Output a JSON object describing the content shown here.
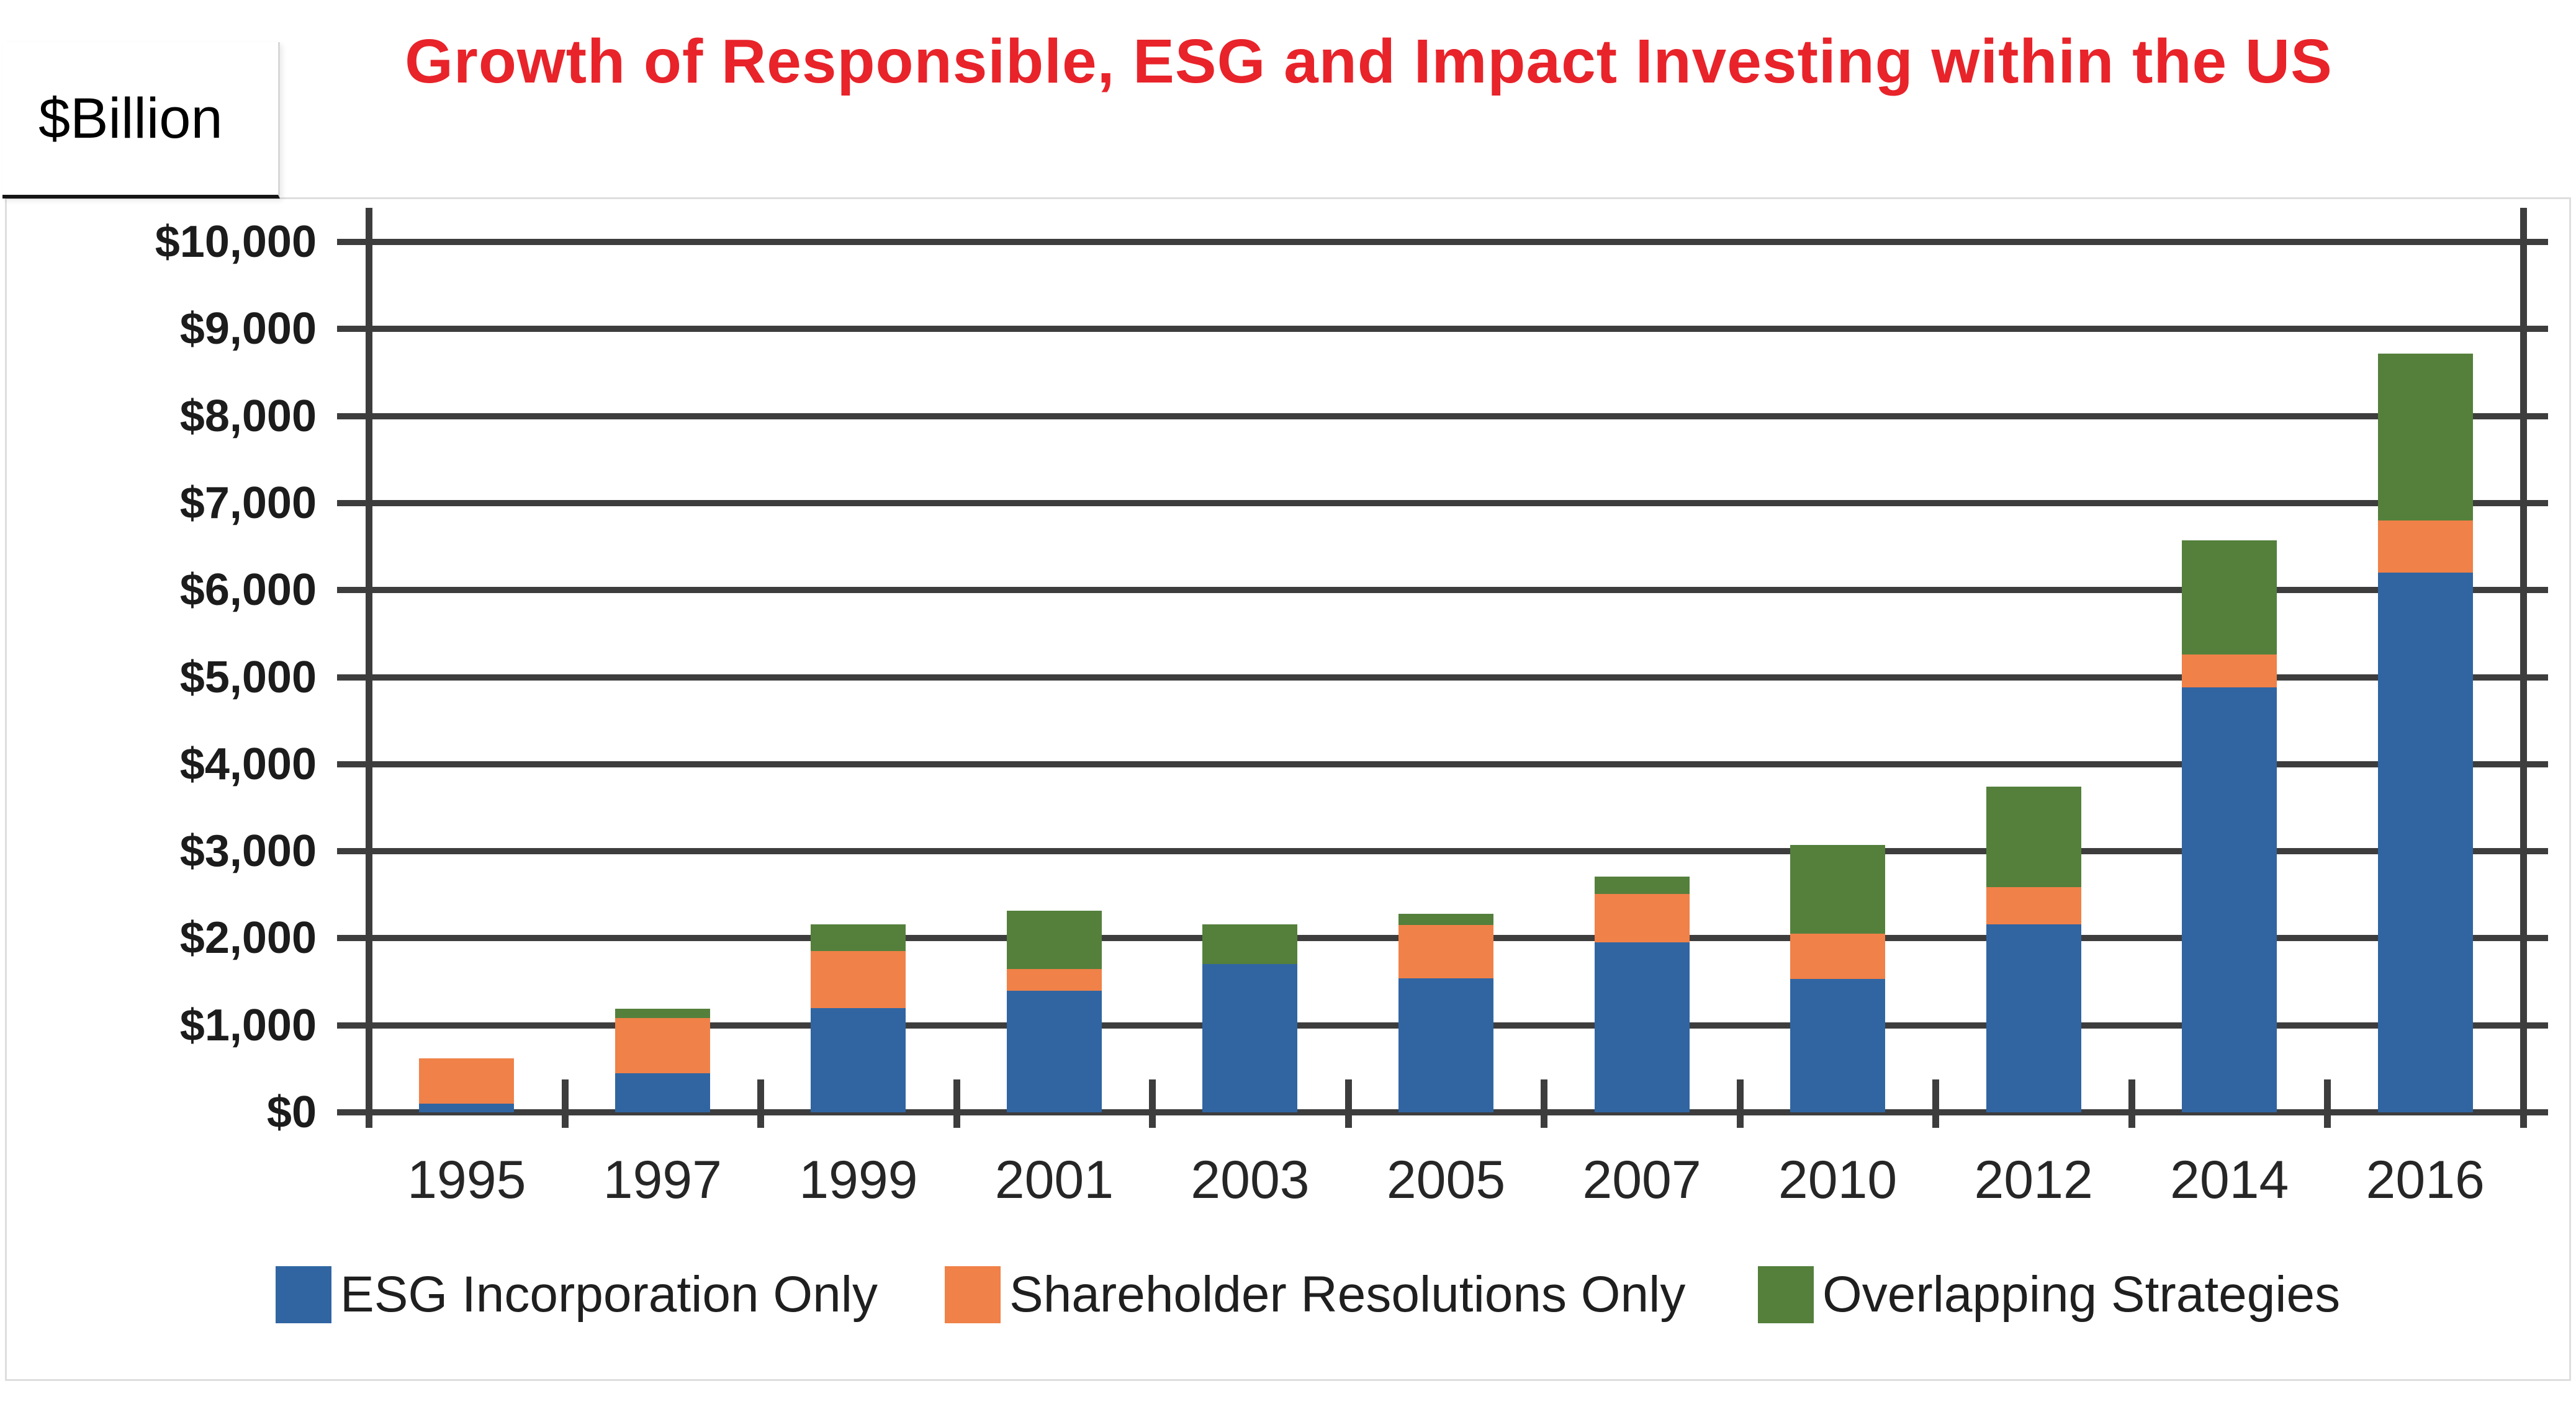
{
  "header": {
    "title": "Growth of Responsible, ESG and Impact Investing within the US",
    "title_color": "#E8232A",
    "y_axis_unit_label": "$Billion"
  },
  "colors": {
    "esg_blue": "#3065A2",
    "resolutions_orange": "#F08148",
    "overlap_green": "#54803C",
    "axis_gray": "#3D3D3D",
    "figure_border_gray": "#DEDEDE",
    "background": "#FFFFFF",
    "text_dark": "#1C1C1C"
  },
  "chart_data": {
    "type": "bar",
    "stacked": true,
    "title": "Growth of Responsible, ESG and Impact Investing within the US",
    "xlabel": "",
    "ylabel": "$Billion",
    "ylim": [
      0,
      10000
    ],
    "y_tick_step": 1000,
    "y_tick_labels": [
      "$0",
      "$1,000",
      "$2,000",
      "$3,000",
      "$4,000",
      "$5,000",
      "$6,000",
      "$7,000",
      "$8,000",
      "$9,000",
      "$10,000"
    ],
    "grid": true,
    "legend_position": "bottom",
    "categories": [
      "1995",
      "1997",
      "1999",
      "2001",
      "2003",
      "2005",
      "2007",
      "2010",
      "2012",
      "2014",
      "2016"
    ],
    "series": [
      {
        "name": "ESG Incorporation Only",
        "color": "#3065A2",
        "values": [
          100,
          450,
          1200,
          1400,
          1700,
          1540,
          1950,
          1530,
          2160,
          4880,
          6200
        ]
      },
      {
        "name": "Shareholder Resolutions Only",
        "color": "#F08148",
        "values": [
          520,
          630,
          650,
          250,
          0,
          610,
          560,
          520,
          430,
          380,
          600
        ]
      },
      {
        "name": "Overlapping Strategies",
        "color": "#54803C",
        "values": [
          0,
          110,
          310,
          670,
          460,
          130,
          200,
          1020,
          1150,
          1310,
          1920
        ]
      }
    ],
    "totals": [
      620,
      1190,
      2160,
      2320,
      2160,
      2280,
      2710,
      3070,
      3740,
      6570,
      8720
    ]
  }
}
